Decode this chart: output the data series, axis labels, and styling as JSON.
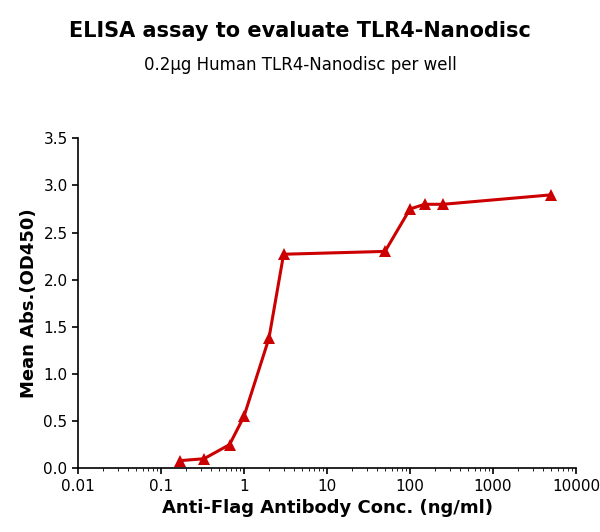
{
  "title": "ELISA assay to evaluate TLR4-Nanodisc",
  "subtitle": "0.2μg Human TLR4-Nanodisc per well",
  "xlabel": "Anti-Flag Antibody Conc. (ng/ml)",
  "ylabel": "Mean Abs.(OD450)",
  "x_data": [
    0.17,
    0.33,
    0.67,
    1.0,
    2.0,
    3.0,
    50.0,
    100.0,
    150.0,
    250.0,
    5000.0
  ],
  "y_data": [
    0.08,
    0.1,
    0.25,
    0.55,
    1.38,
    2.27,
    2.3,
    2.75,
    2.8,
    2.8,
    2.9
  ],
  "xlim_log": [
    0.01,
    10000
  ],
  "ylim": [
    0,
    3.5
  ],
  "yticks": [
    0.0,
    0.5,
    1.0,
    1.5,
    2.0,
    2.5,
    3.0,
    3.5
  ],
  "xtick_vals": [
    0.01,
    0.1,
    1,
    10,
    100,
    1000,
    10000
  ],
  "xtick_labels": [
    "0.01",
    "0.1",
    "1",
    "10",
    "100",
    "1000",
    "10000"
  ],
  "color": "#cc0000",
  "marker": "^",
  "markersize": 9,
  "linewidth": 2.2,
  "title_fontsize": 15,
  "subtitle_fontsize": 12,
  "label_fontsize": 13,
  "tick_fontsize": 11,
  "background_color": "#ffffff"
}
